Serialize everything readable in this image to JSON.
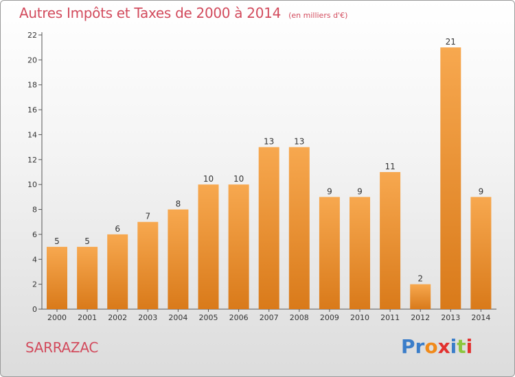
{
  "chart_data": {
    "type": "bar",
    "title": "Autres Impôts et Taxes de 2000 à 2014",
    "unit": "(en milliers d'€)",
    "categories": [
      "2000",
      "2001",
      "2002",
      "2003",
      "2004",
      "2005",
      "2006",
      "2007",
      "2008",
      "2009",
      "2010",
      "2011",
      "2012",
      "2013",
      "2014"
    ],
    "values": [
      5,
      5,
      6,
      7,
      8,
      10,
      10,
      13,
      13,
      9,
      9,
      11,
      2,
      21,
      9
    ],
    "ylim": [
      0,
      22
    ],
    "yticks": [
      0,
      2,
      4,
      6,
      8,
      10,
      12,
      14,
      16,
      18,
      20,
      22
    ],
    "grid": false,
    "colors": {
      "bar_light": "#f7a84f",
      "bar_dark": "#d97a1a",
      "text": "#d24a5c"
    }
  },
  "footer": {
    "place": "SARRAZAC",
    "logo": "Proxiti"
  }
}
